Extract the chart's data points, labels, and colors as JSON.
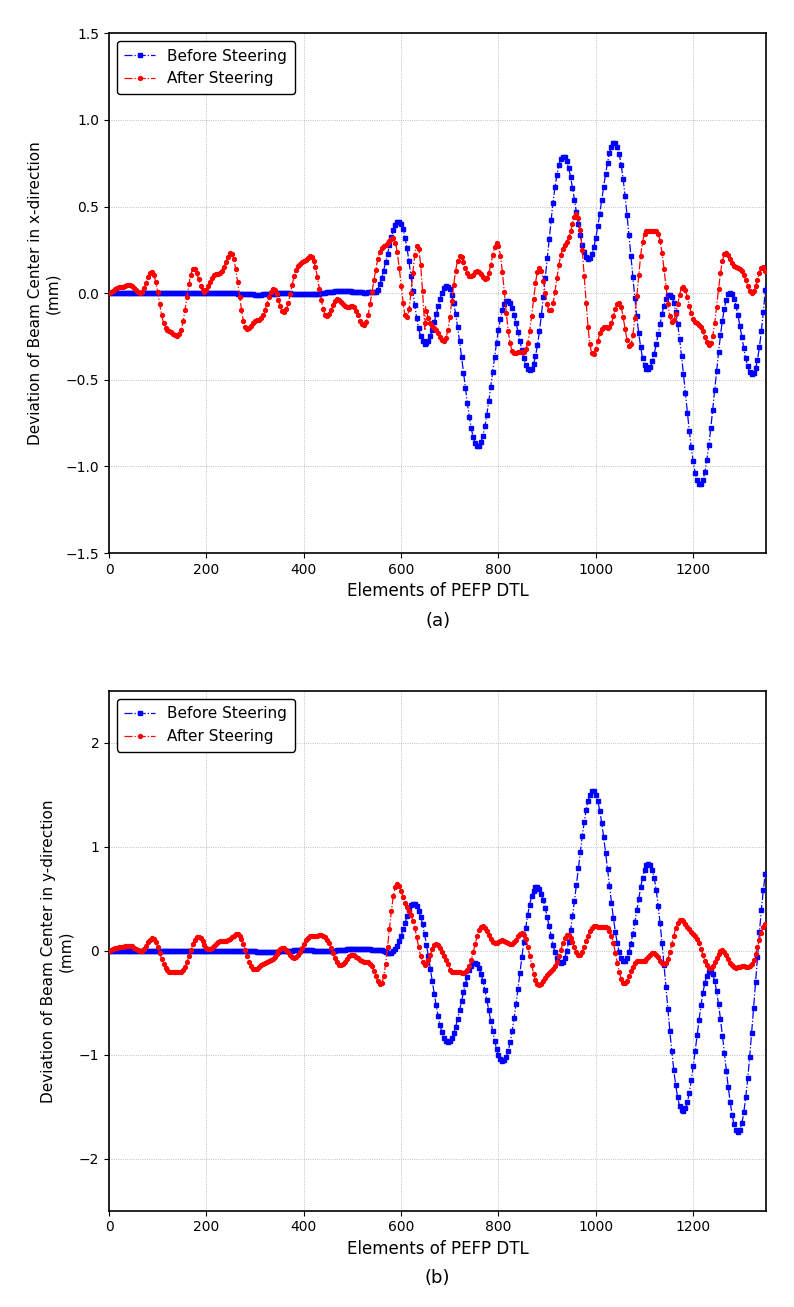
{
  "title_a": "(a)",
  "title_b": "(b)",
  "xlabel": "Elements of PEFP DTL",
  "ylabel_a": "Deviation of Beam Center in x-direction\n(mm)",
  "ylabel_b": "Deviation of Beam Center in y-direction\n(mm)",
  "xlim": [
    0,
    1350
  ],
  "ylim_a": [
    -1.5,
    1.5
  ],
  "ylim_b": [
    -2.5,
    2.5
  ],
  "xticks": [
    0,
    200,
    400,
    600,
    800,
    1000,
    1200
  ],
  "yticks_a": [
    -1.5,
    -1.0,
    -0.5,
    0.0,
    0.5,
    1.0,
    1.5
  ],
  "yticks_b": [
    -2.0,
    -1.0,
    0.0,
    1.0,
    2.0
  ],
  "legend_before": "Before Steering",
  "legend_after": "After Steering",
  "color_before": "#0000FF",
  "color_after": "#FF0000",
  "n_elements": 1350,
  "background_color": "#FFFFFF",
  "grid_color": "#888888"
}
